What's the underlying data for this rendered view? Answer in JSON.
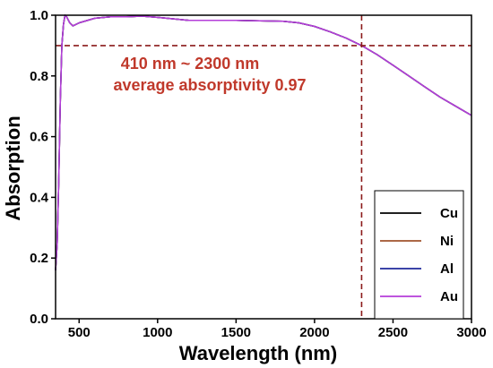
{
  "chart_data": {
    "type": "line",
    "xlabel": "Wavelength (nm)",
    "ylabel": "Absorption",
    "xlim": [
      350,
      3000
    ],
    "ylim": [
      0.0,
      1.0
    ],
    "x_ticks": [
      500,
      1000,
      1500,
      2000,
      2500,
      3000
    ],
    "y_ticks": [
      0.0,
      0.2,
      0.4,
      0.6,
      0.8,
      1.0
    ],
    "y_tick_labels": [
      "0.0",
      "0.2",
      "0.4",
      "0.6",
      "0.8",
      "1.0"
    ],
    "annotation_lines": [
      "410 nm ~ 2300 nm",
      "average absorptivity 0.97"
    ],
    "reference_lines": {
      "horizontal_y": 0.9,
      "vertical_x": 2300
    },
    "legend_position": "bottom-right",
    "series": [
      {
        "name": "Cu",
        "color": "#000000",
        "x": [
          350,
          360,
          370,
          380,
          390,
          400,
          410,
          420,
          440,
          460,
          500,
          600,
          700,
          800,
          900,
          1000,
          1200,
          1500,
          1800,
          1900,
          2000,
          2100,
          2200,
          2300,
          2400,
          2500,
          2600,
          2700,
          2800,
          2900,
          3000
        ],
        "y": [
          0.16,
          0.25,
          0.45,
          0.72,
          0.9,
          0.97,
          1.0,
          0.995,
          0.975,
          0.965,
          0.975,
          0.99,
          0.995,
          0.995,
          0.997,
          0.993,
          0.983,
          0.983,
          0.98,
          0.975,
          0.963,
          0.945,
          0.925,
          0.9,
          0.87,
          0.835,
          0.8,
          0.765,
          0.73,
          0.7,
          0.67
        ]
      },
      {
        "name": "Ni",
        "color": "#a0522d",
        "x": [
          350,
          360,
          370,
          380,
          390,
          400,
          410,
          420,
          440,
          460,
          500,
          600,
          700,
          800,
          900,
          1000,
          1200,
          1500,
          1800,
          1900,
          2000,
          2100,
          2200,
          2300,
          2400,
          2500,
          2600,
          2700,
          2800,
          2900,
          3000
        ],
        "y": [
          0.16,
          0.25,
          0.45,
          0.72,
          0.9,
          0.97,
          1.0,
          0.995,
          0.975,
          0.965,
          0.975,
          0.99,
          0.995,
          0.995,
          0.997,
          0.993,
          0.983,
          0.983,
          0.98,
          0.975,
          0.963,
          0.945,
          0.925,
          0.9,
          0.87,
          0.835,
          0.8,
          0.765,
          0.73,
          0.7,
          0.67
        ]
      },
      {
        "name": "Al",
        "color": "#1f2a9c",
        "x": [
          350,
          360,
          370,
          380,
          390,
          400,
          410,
          420,
          440,
          460,
          500,
          600,
          700,
          800,
          900,
          1000,
          1200,
          1500,
          1800,
          1900,
          2000,
          2100,
          2200,
          2300,
          2400,
          2500,
          2600,
          2700,
          2800,
          2900,
          3000
        ],
        "y": [
          0.16,
          0.25,
          0.45,
          0.72,
          0.9,
          0.97,
          1.0,
          0.995,
          0.975,
          0.965,
          0.975,
          0.99,
          0.995,
          0.995,
          0.997,
          0.993,
          0.983,
          0.983,
          0.98,
          0.975,
          0.963,
          0.945,
          0.925,
          0.9,
          0.87,
          0.835,
          0.8,
          0.765,
          0.73,
          0.7,
          0.67
        ]
      },
      {
        "name": "Au",
        "color": "#b53dd9",
        "x": [
          350,
          360,
          370,
          380,
          390,
          400,
          410,
          420,
          440,
          460,
          500,
          600,
          700,
          800,
          900,
          1000,
          1200,
          1500,
          1800,
          1900,
          2000,
          2100,
          2200,
          2300,
          2400,
          2500,
          2600,
          2700,
          2800,
          2900,
          3000
        ],
        "y": [
          0.16,
          0.25,
          0.45,
          0.72,
          0.9,
          0.97,
          1.0,
          0.995,
          0.975,
          0.965,
          0.975,
          0.99,
          0.995,
          0.995,
          0.997,
          0.993,
          0.983,
          0.983,
          0.98,
          0.975,
          0.963,
          0.945,
          0.925,
          0.9,
          0.87,
          0.835,
          0.8,
          0.765,
          0.73,
          0.7,
          0.67
        ]
      }
    ]
  }
}
